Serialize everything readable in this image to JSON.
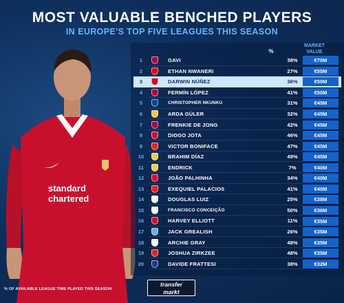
{
  "title": "MOST VALUABLE BENCHED PLAYERS",
  "subtitle": "IN EUROPE'S TOP FIVE LEAGUES THIS SEASON",
  "headers": {
    "pct": "%",
    "market_value_line1": "MARKET",
    "market_value_line2": "VALUE"
  },
  "footnote": "% OF AVAILABLE LEAGUE TIME PLAYED THIS SEASON",
  "brand": {
    "line1": "transfer",
    "line2": "markt"
  },
  "colors": {
    "accent": "#1563c8",
    "subtitle": "#63b6ff",
    "highlight": "#cfe6ff",
    "kit": "#c8102e"
  },
  "highlight_rank": "3",
  "players": [
    {
      "rank": "1",
      "name": "GAVI",
      "pct": "38%",
      "value": "€70M",
      "crest": "barcelona-crest",
      "crest_color": "#a50044"
    },
    {
      "rank": "2",
      "name": "ETHAN NWANERI",
      "pct": "27%",
      "value": "€55M",
      "crest": "arsenal-crest",
      "crest_color": "#db0007"
    },
    {
      "rank": "3",
      "name": "DARWIN NÚÑEZ",
      "pct": "36%",
      "value": "€50M",
      "crest": "liverpool-crest",
      "crest_color": "#c8102e"
    },
    {
      "rank": "4",
      "name": "FERMÍN LÓPEZ",
      "pct": "41%",
      "value": "€50M",
      "crest": "barcelona-crest",
      "crest_color": "#a50044"
    },
    {
      "rank": "5",
      "name": "CHRISTOPHER NKUNKU",
      "pct": "31%",
      "value": "€45M",
      "crest": "chelsea-crest",
      "crest_color": "#034694"
    },
    {
      "rank": "6",
      "name": "ARDA GÜLER",
      "pct": "32%",
      "value": "€45M",
      "crest": "real-madrid-crest",
      "crest_color": "#f2c94c"
    },
    {
      "rank": "7",
      "name": "FRENKIE DE JONG",
      "pct": "42%",
      "value": "€45M",
      "crest": "barcelona-crest",
      "crest_color": "#a50044"
    },
    {
      "rank": "8",
      "name": "DIOGO JOTA",
      "pct": "46%",
      "value": "€45M",
      "crest": "liverpool-crest",
      "crest_color": "#c8102e"
    },
    {
      "rank": "9",
      "name": "VICTOR BONIFACE",
      "pct": "47%",
      "value": "€45M",
      "crest": "leverkusen-crest",
      "crest_color": "#e32221"
    },
    {
      "rank": "10",
      "name": "BRAHIM DÍAZ",
      "pct": "49%",
      "value": "€45M",
      "crest": "real-madrid-crest",
      "crest_color": "#f2c94c"
    },
    {
      "rank": "11",
      "name": "ENDRICK",
      "pct": "7%",
      "value": "€40M",
      "crest": "real-madrid-crest",
      "crest_color": "#f2c94c"
    },
    {
      "rank": "12",
      "name": "JOÃO PALHINHA",
      "pct": "34%",
      "value": "€40M",
      "crest": "bayern-crest",
      "crest_color": "#dc052d"
    },
    {
      "rank": "13",
      "name": "EXEQUIEL PALACIOS",
      "pct": "41%",
      "value": "€40M",
      "crest": "leverkusen-crest",
      "crest_color": "#e32221"
    },
    {
      "rank": "14",
      "name": "DOUGLAS LUIZ",
      "pct": "25%",
      "value": "€38M",
      "crest": "juventus-crest",
      "crest_color": "#ffffff"
    },
    {
      "rank": "15",
      "name": "FRANCISCO CONCEIÇÃO",
      "pct": "50%",
      "value": "€36M",
      "crest": "juventus-crest",
      "crest_color": "#ffffff"
    },
    {
      "rank": "16",
      "name": "HARVEY ELLIOTT",
      "pct": "11%",
      "value": "€35M",
      "crest": "liverpool-crest",
      "crest_color": "#c8102e"
    },
    {
      "rank": "17",
      "name": "JACK GREALISH",
      "pct": "26%",
      "value": "€35M",
      "crest": "man-city-crest",
      "crest_color": "#6cabdd"
    },
    {
      "rank": "18",
      "name": "ARCHIE GRAY",
      "pct": "48%",
      "value": "€35M",
      "crest": "tottenham-crest",
      "crest_color": "#ffffff"
    },
    {
      "rank": "19",
      "name": "JOSHUA ZIRKZEE",
      "pct": "48%",
      "value": "€35M",
      "crest": "man-united-crest",
      "crest_color": "#da291c"
    },
    {
      "rank": "20",
      "name": "DAVIDE FRATTESI",
      "pct": "38%",
      "value": "€32M",
      "crest": "inter-crest",
      "crest_color": "#1e3a8a"
    }
  ]
}
